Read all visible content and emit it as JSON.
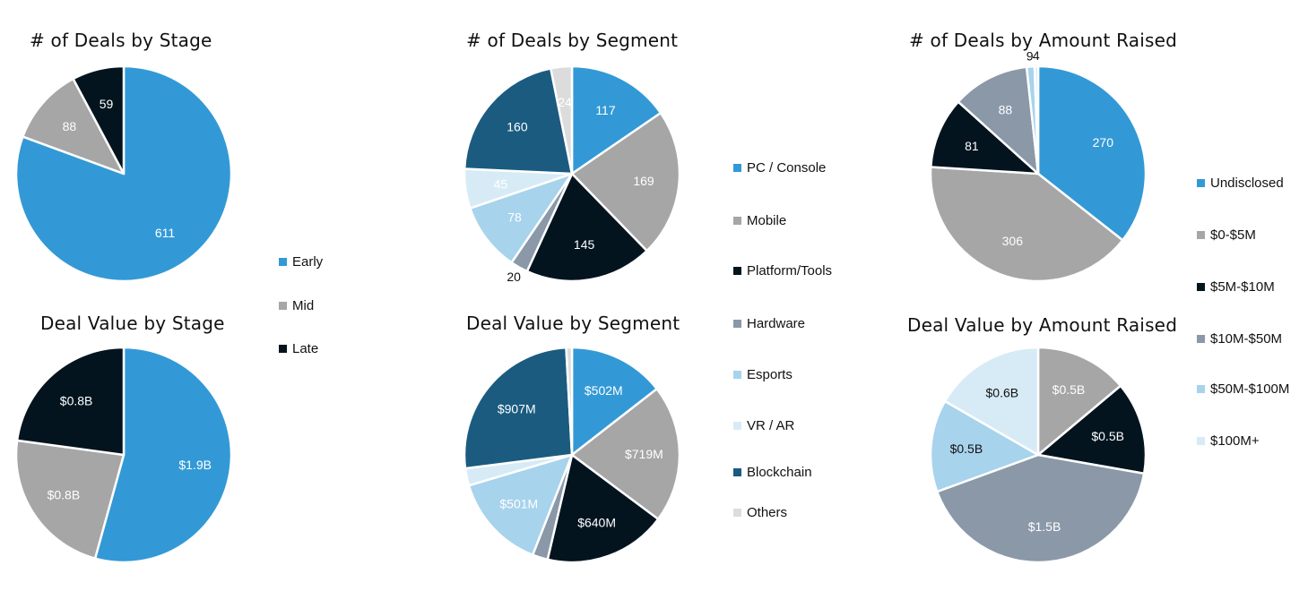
{
  "colors": {
    "blue": "#3399d6",
    "gray": "#a6a6a6",
    "black": "#03141f",
    "slate": "#8a98a8",
    "lightblue": "#a7d3ec",
    "paleblue": "#d7ebf6",
    "darkblue": "#1b5b80",
    "lightgray": "#dcdcdc"
  },
  "legend_stage": [
    {
      "label": "Early",
      "color": "#3399d6"
    },
    {
      "label": "Mid",
      "color": "#a6a6a6"
    },
    {
      "label": "Late",
      "color": "#03141f"
    }
  ],
  "legend_segment": [
    {
      "label": "PC / Console",
      "color": "#3399d6"
    },
    {
      "label": "Mobile",
      "color": "#a6a6a6"
    },
    {
      "label": "Platform/Tools",
      "color": "#03141f"
    },
    {
      "label": "Hardware",
      "color": "#8a98a8"
    },
    {
      "label": "Esports",
      "color": "#a7d3ec"
    },
    {
      "label": "VR / AR",
      "color": "#d7ebf6"
    },
    {
      "label": "Blockchain",
      "color": "#1b5b80"
    },
    {
      "label": "Others",
      "color": "#dcdcdc"
    }
  ],
  "legend_amount": [
    {
      "label": "Undisclosed",
      "color": "#3399d6"
    },
    {
      "label": "$0-$5M",
      "color": "#a6a6a6"
    },
    {
      "label": "$5M-$10M",
      "color": "#03141f"
    },
    {
      "label": "$10M-$50M",
      "color": "#8a98a8"
    },
    {
      "label": "$50M-$100M",
      "color": "#a7d3ec"
    },
    {
      "label": "$100M+",
      "color": "#d7ebf6"
    }
  ],
  "chart_data": [
    {
      "type": "pie",
      "title": "# of Deals by Stage",
      "categories": [
        "Early",
        "Mid",
        "Late"
      ],
      "values": [
        611,
        88,
        59
      ],
      "labels": [
        "611",
        "88",
        "59"
      ],
      "colors": [
        "#3399d6",
        "#a6a6a6",
        "#03141f"
      ],
      "label_colors": [
        "#ffffff",
        "#ffffff",
        "#ffffff"
      ],
      "outside": [
        false,
        false,
        false
      ],
      "legend": "right"
    },
    {
      "type": "pie",
      "title": "# of Deals by Segment",
      "categories": [
        "PC / Console",
        "Mobile",
        "Platform/Tools",
        "Hardware",
        "Esports",
        "VR / AR",
        "Blockchain",
        "Others"
      ],
      "values": [
        117,
        169,
        145,
        20,
        78,
        45,
        160,
        24
      ],
      "labels": [
        "117",
        "169",
        "145",
        "20",
        "78",
        "45",
        "160",
        "24"
      ],
      "colors": [
        "#3399d6",
        "#a6a6a6",
        "#03141f",
        "#8a98a8",
        "#a7d3ec",
        "#d7ebf6",
        "#1b5b80",
        "#dcdcdc"
      ],
      "label_colors": [
        "#ffffff",
        "#ffffff",
        "#ffffff",
        "#111111",
        "#ffffff",
        "#ffffff",
        "#ffffff",
        "#ffffff"
      ],
      "outside": [
        false,
        false,
        false,
        true,
        false,
        false,
        false,
        false
      ],
      "legend": "right"
    },
    {
      "type": "pie",
      "title": "# of Deals by Amount Raised",
      "categories": [
        "Undisclosed",
        "$0-$5M",
        "$5M-$10M",
        "$10M-$50M",
        "$50M-$100M",
        "$100M+"
      ],
      "values": [
        270,
        306,
        81,
        88,
        9,
        4
      ],
      "labels": [
        "270",
        "306",
        "81",
        "88",
        "9",
        "4"
      ],
      "colors": [
        "#3399d6",
        "#a6a6a6",
        "#03141f",
        "#8a98a8",
        "#a7d3ec",
        "#d7ebf6"
      ],
      "label_colors": [
        "#ffffff",
        "#ffffff",
        "#ffffff",
        "#ffffff",
        "#111111",
        "#111111"
      ],
      "outside": [
        false,
        false,
        false,
        false,
        true,
        true
      ],
      "legend": "right"
    },
    {
      "type": "pie",
      "title": "Deal Value by Stage",
      "categories": [
        "Early",
        "Mid",
        "Late"
      ],
      "values": [
        1.9,
        0.8,
        0.8
      ],
      "labels": [
        "$1.9B",
        "$0.8B",
        "$0.8B"
      ],
      "colors": [
        "#3399d6",
        "#a6a6a6",
        "#03141f"
      ],
      "label_colors": [
        "#ffffff",
        "#ffffff",
        "#ffffff"
      ],
      "outside": [
        false,
        false,
        false
      ],
      "legend": "right"
    },
    {
      "type": "pie",
      "title": "Deal Value by Segment",
      "categories": [
        "PC / Console",
        "Mobile",
        "Platform/Tools",
        "Hardware",
        "Esports",
        "VR / AR",
        "Blockchain",
        "Others"
      ],
      "values": [
        502,
        719,
        640,
        80,
        501,
        90,
        907,
        30
      ],
      "labels": [
        "$502M",
        "$719M",
        "$640M",
        "",
        "$501M",
        "",
        "$907M",
        ""
      ],
      "colors": [
        "#3399d6",
        "#a6a6a6",
        "#03141f",
        "#8a98a8",
        "#a7d3ec",
        "#d7ebf6",
        "#1b5b80",
        "#dcdcdc"
      ],
      "label_colors": [
        "#ffffff",
        "#ffffff",
        "#ffffff",
        "#ffffff",
        "#ffffff",
        "#ffffff",
        "#ffffff",
        "#ffffff"
      ],
      "outside": [
        false,
        false,
        false,
        false,
        false,
        false,
        false,
        false
      ],
      "legend": "right"
    },
    {
      "type": "pie",
      "title": "Deal Value by Amount Raised",
      "categories": [
        "$0-$5M",
        "$5M-$10M",
        "$10M-$50M",
        "$50M-$100M",
        "$100M+"
      ],
      "values": [
        0.5,
        0.5,
        1.5,
        0.5,
        0.6
      ],
      "labels": [
        "$0.5B",
        "$0.5B",
        "$1.5B",
        "$0.5B",
        "$0.6B"
      ],
      "colors": [
        "#a6a6a6",
        "#03141f",
        "#8a98a8",
        "#a7d3ec",
        "#d7ebf6"
      ],
      "label_colors": [
        "#ffffff",
        "#ffffff",
        "#ffffff",
        "#111111",
        "#111111"
      ],
      "outside": [
        false,
        false,
        false,
        false,
        false
      ],
      "legend": "right"
    }
  ]
}
